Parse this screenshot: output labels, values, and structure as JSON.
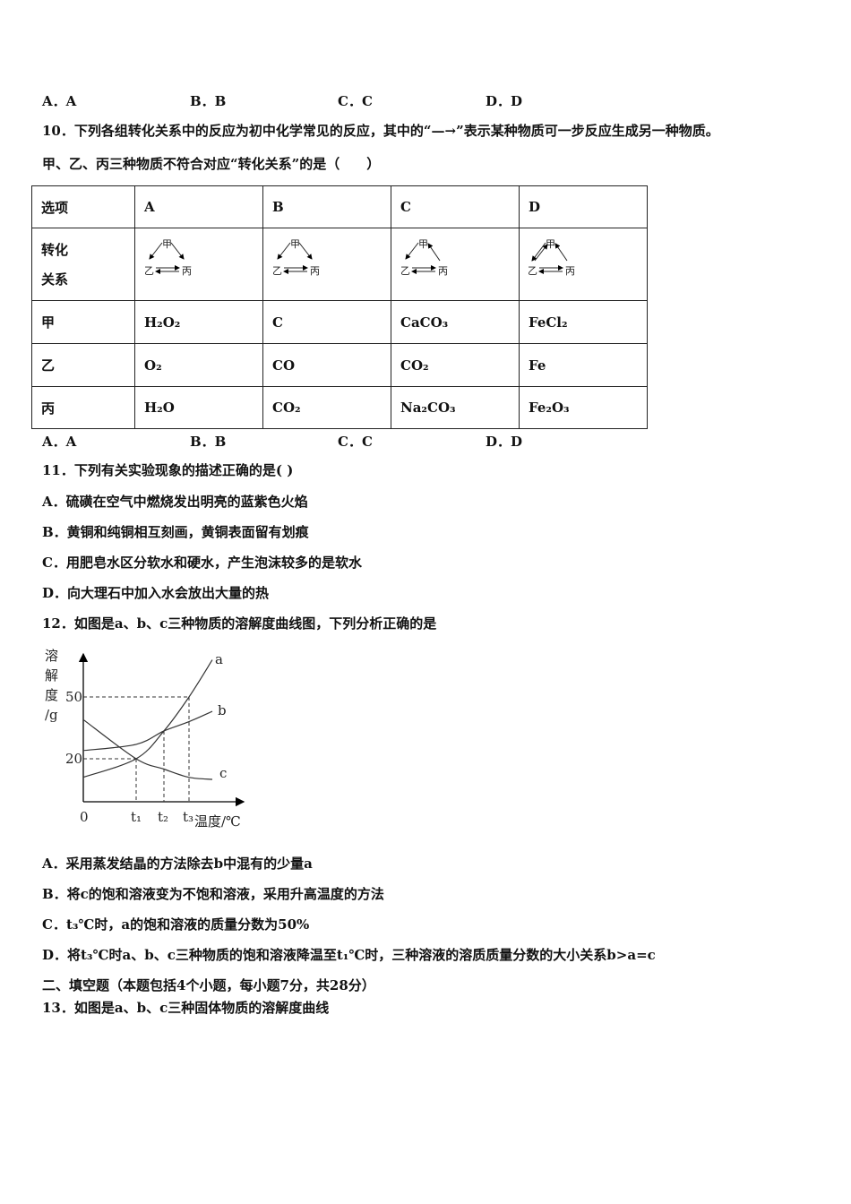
{
  "q9_options": [
    "A．A",
    "B．B",
    "C．C",
    "D．D"
  ],
  "q10": {
    "line1": "10．下列各组转化关系中的反应为初中化学常见的反应，其中的“—→”表示某种物质可一步反应生成另一种物质。",
    "line2": "甲、乙、丙三种物质不符合对应“转化关系”的是（　　）",
    "table": {
      "header": [
        "选项",
        "A",
        "B",
        "C",
        "D"
      ],
      "row_relation_label": [
        "转化",
        "关系"
      ],
      "diagram_labels": {
        "top": "甲",
        "left": "乙",
        "right": "丙"
      },
      "rows": [
        [
          "甲",
          "H₂O₂",
          "C",
          "CaCO₃",
          "FeCl₂"
        ],
        [
          "乙",
          "O₂",
          "CO",
          "CO₂",
          "Fe"
        ],
        [
          "丙",
          "H₂O",
          "CO₂",
          "Na₂CO₃",
          "Fe₂O₃"
        ]
      ]
    },
    "options": [
      "A．A",
      "B．B",
      "C．C",
      "D．D"
    ]
  },
  "q11": {
    "stem": "11．下列有关实验现象的描述正确的是(   )",
    "options": [
      "A．硫磺在空气中燃烧发出明亮的蓝紫色火焰",
      "B．黄铜和纯铜相互刻画，黄铜表面留有划痕",
      "C．用肥皂水区分软水和硬水，产生泡沫较多的是软水",
      "D．向大理石中加入水会放出大量的热"
    ]
  },
  "q12": {
    "stem": "12．如图是a、b、c三种物质的溶解度曲线图，下列分析正确的是",
    "options": [
      "A．采用蒸发结晶的方法除去b中混有的少量a",
      "B．将c的饱和溶液变为不饱和溶液，采用升高温度的方法",
      "C．t₃℃时，a的饱和溶液的质量分数为50%",
      "D．将t₃℃时a、b、c三种物质的饱和溶液降温至t₁℃时，三种溶液的溶质质量分数的大小关系b>a=c"
    ]
  },
  "chart_data": {
    "type": "line",
    "ylabel": "溶解度/g",
    "ylabel_chars": [
      "溶",
      "解",
      "度",
      "/g"
    ],
    "xlabel": "温度/℃",
    "x_ticks": [
      "0",
      "t₁",
      "t₂",
      "t₃"
    ],
    "y_ticks": [
      20,
      50
    ],
    "series": [
      {
        "name": "a",
        "values": [
          11,
          20,
          33.5,
          50,
          68
        ]
      },
      {
        "name": "b",
        "values": [
          24,
          27,
          33.5,
          38,
          43
        ]
      },
      {
        "name": "c",
        "values": [
          39,
          20,
          15,
          11,
          10
        ]
      }
    ]
  },
  "section2": "二、填空题（本题包括4个小题，每小题7分，共28分）",
  "q13": "13．如图是a、b、c三种固体物质的溶解度曲线"
}
